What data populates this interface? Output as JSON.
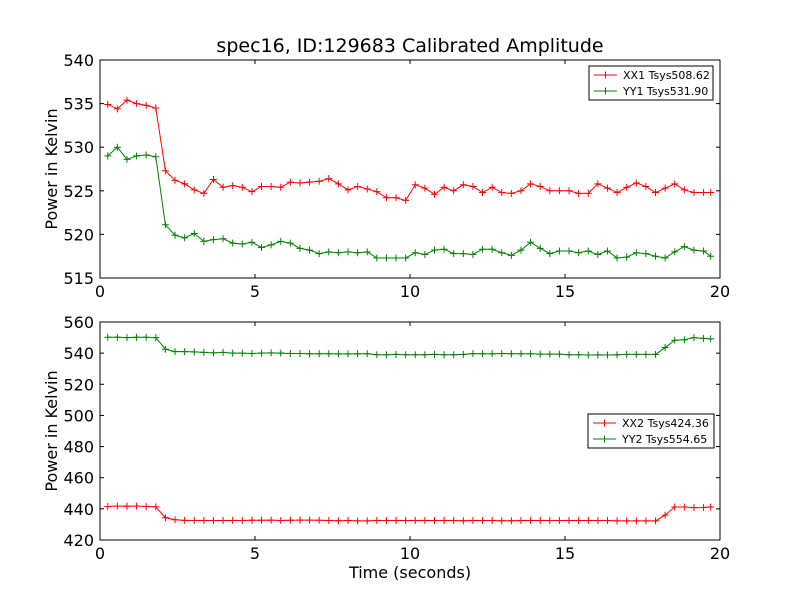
{
  "chart_data": [
    {
      "type": "line",
      "title": "spec16, ID:129683 Calibrated Amplitude",
      "xlabel": "",
      "ylabel": "Power in Kelvin",
      "xlim": [
        0,
        20
      ],
      "ylim": [
        515,
        540
      ],
      "xticks": [
        0,
        5,
        10,
        15,
        20
      ],
      "yticks": [
        515,
        520,
        525,
        530,
        535,
        540
      ],
      "grid": false,
      "legend_position": "top-right",
      "x": [
        0.25,
        0.56,
        0.87,
        1.18,
        1.49,
        1.8,
        2.11,
        2.42,
        2.73,
        3.04,
        3.35,
        3.66,
        3.97,
        4.28,
        4.59,
        4.9,
        5.21,
        5.52,
        5.83,
        6.14,
        6.45,
        6.76,
        7.07,
        7.38,
        7.69,
        8.0,
        8.31,
        8.62,
        8.93,
        9.24,
        9.55,
        9.86,
        10.17,
        10.48,
        10.79,
        11.1,
        11.41,
        11.72,
        12.03,
        12.34,
        12.65,
        12.96,
        13.27,
        13.58,
        13.89,
        14.2,
        14.51,
        14.82,
        15.13,
        15.44,
        15.75,
        16.06,
        16.37,
        16.68,
        16.99,
        17.3,
        17.61,
        17.92,
        18.23,
        18.54,
        18.85,
        19.16,
        19.47,
        19.7
      ],
      "series": [
        {
          "name": "XX1 Tsys508.62",
          "color": "#ff0000",
          "values": [
            534.9,
            534.4,
            535.4,
            535.0,
            534.8,
            534.5,
            527.3,
            526.2,
            525.8,
            525.1,
            524.7,
            526.3,
            525.4,
            525.6,
            525.4,
            524.9,
            525.5,
            525.5,
            525.4,
            526.0,
            525.9,
            526.0,
            526.1,
            526.4,
            525.8,
            525.1,
            525.5,
            525.2,
            524.9,
            524.2,
            524.2,
            523.9,
            525.7,
            525.3,
            524.6,
            525.4,
            525.0,
            525.7,
            525.5,
            524.8,
            525.4,
            524.8,
            524.7,
            525.0,
            525.8,
            525.5,
            525.0,
            525.0,
            525.0,
            524.7,
            524.7,
            525.8,
            525.3,
            524.8,
            525.4,
            525.9,
            525.5,
            524.8,
            525.3,
            525.8,
            525.1,
            524.8,
            524.8,
            524.8
          ],
          "note_points": "series aligned by index to shared x"
        },
        {
          "name": "YY1 Tsys531.90",
          "color": "#008000",
          "values": [
            529.0,
            530.0,
            528.6,
            529.0,
            529.1,
            528.9,
            521.1,
            519.9,
            519.6,
            520.1,
            519.2,
            519.4,
            519.5,
            519.0,
            518.9,
            519.1,
            518.5,
            518.8,
            519.2,
            519.0,
            518.4,
            518.2,
            517.8,
            518.0,
            517.9,
            518.0,
            517.9,
            518.0,
            517.3,
            517.3,
            517.3,
            517.3,
            517.9,
            517.7,
            518.2,
            518.3,
            517.8,
            517.8,
            517.7,
            518.3,
            518.3,
            517.9,
            517.6,
            518.2,
            519.1,
            518.4,
            517.8,
            518.1,
            518.1,
            517.9,
            518.1,
            517.7,
            518.1,
            517.3,
            517.4,
            517.9,
            517.8,
            517.5,
            517.3,
            518.0,
            518.6,
            518.2,
            518.1,
            517.5
          ]
        }
      ]
    },
    {
      "type": "line",
      "title": "",
      "xlabel": "Time (seconds)",
      "ylabel": "Power in Kelvin",
      "xlim": [
        0,
        20
      ],
      "ylim": [
        420,
        560
      ],
      "xticks": [
        0,
        5,
        10,
        15,
        20
      ],
      "yticks": [
        420,
        440,
        460,
        480,
        500,
        520,
        540,
        560
      ],
      "grid": false,
      "legend_position": "center-right",
      "x": [
        0.25,
        0.56,
        0.87,
        1.18,
        1.49,
        1.8,
        2.11,
        2.42,
        2.73,
        3.04,
        3.35,
        3.66,
        3.97,
        4.28,
        4.59,
        4.9,
        5.21,
        5.52,
        5.83,
        6.14,
        6.45,
        6.76,
        7.07,
        7.38,
        7.69,
        8.0,
        8.31,
        8.62,
        8.93,
        9.24,
        9.55,
        9.86,
        10.17,
        10.48,
        10.79,
        11.1,
        11.41,
        11.72,
        12.03,
        12.34,
        12.65,
        12.96,
        13.27,
        13.58,
        13.89,
        14.2,
        14.51,
        14.82,
        15.13,
        15.44,
        15.75,
        16.06,
        16.37,
        16.68,
        16.99,
        17.3,
        17.61,
        17.92,
        18.23,
        18.54,
        18.85,
        19.16,
        19.47,
        19.7
      ],
      "series": [
        {
          "name": "XX2 Tsys424.36",
          "color": "#ff0000",
          "values": [
            441.5,
            441.8,
            441.7,
            441.8,
            441.5,
            441.3,
            434.3,
            433.0,
            432.6,
            432.5,
            432.5,
            432.5,
            432.5,
            432.5,
            432.5,
            432.7,
            432.7,
            432.8,
            432.5,
            432.7,
            432.8,
            432.8,
            432.7,
            432.5,
            432.4,
            432.5,
            432.3,
            432.3,
            432.5,
            432.5,
            432.5,
            432.5,
            432.5,
            432.5,
            432.5,
            432.5,
            432.5,
            432.4,
            432.5,
            432.5,
            432.5,
            432.4,
            432.4,
            432.5,
            432.5,
            432.5,
            432.5,
            432.5,
            432.5,
            432.5,
            432.5,
            432.5,
            432.5,
            432.3,
            432.3,
            432.3,
            432.3,
            432.3,
            436.0,
            441.2,
            441.2,
            440.8,
            440.9,
            441.2
          ]
        },
        {
          "name": "YY2 Tsys554.65",
          "color": "#008000",
          "values": [
            550.2,
            550.2,
            550.0,
            550.2,
            550.2,
            550.0,
            542.5,
            541.0,
            541.0,
            540.8,
            540.5,
            540.2,
            540.5,
            540.0,
            540.0,
            539.8,
            540.0,
            540.2,
            540.0,
            539.8,
            539.8,
            539.6,
            539.6,
            539.6,
            539.5,
            539.5,
            539.6,
            539.6,
            539.0,
            539.0,
            539.2,
            539.0,
            539.0,
            539.0,
            539.2,
            539.0,
            539.0,
            539.2,
            539.7,
            539.6,
            539.6,
            539.8,
            539.6,
            539.6,
            539.6,
            539.4,
            539.4,
            539.4,
            539.0,
            539.0,
            538.8,
            538.9,
            538.8,
            539.0,
            539.2,
            539.2,
            539.2,
            539.2,
            543.6,
            548.3,
            548.6,
            550.0,
            549.5,
            549.2
          ]
        }
      ]
    }
  ]
}
